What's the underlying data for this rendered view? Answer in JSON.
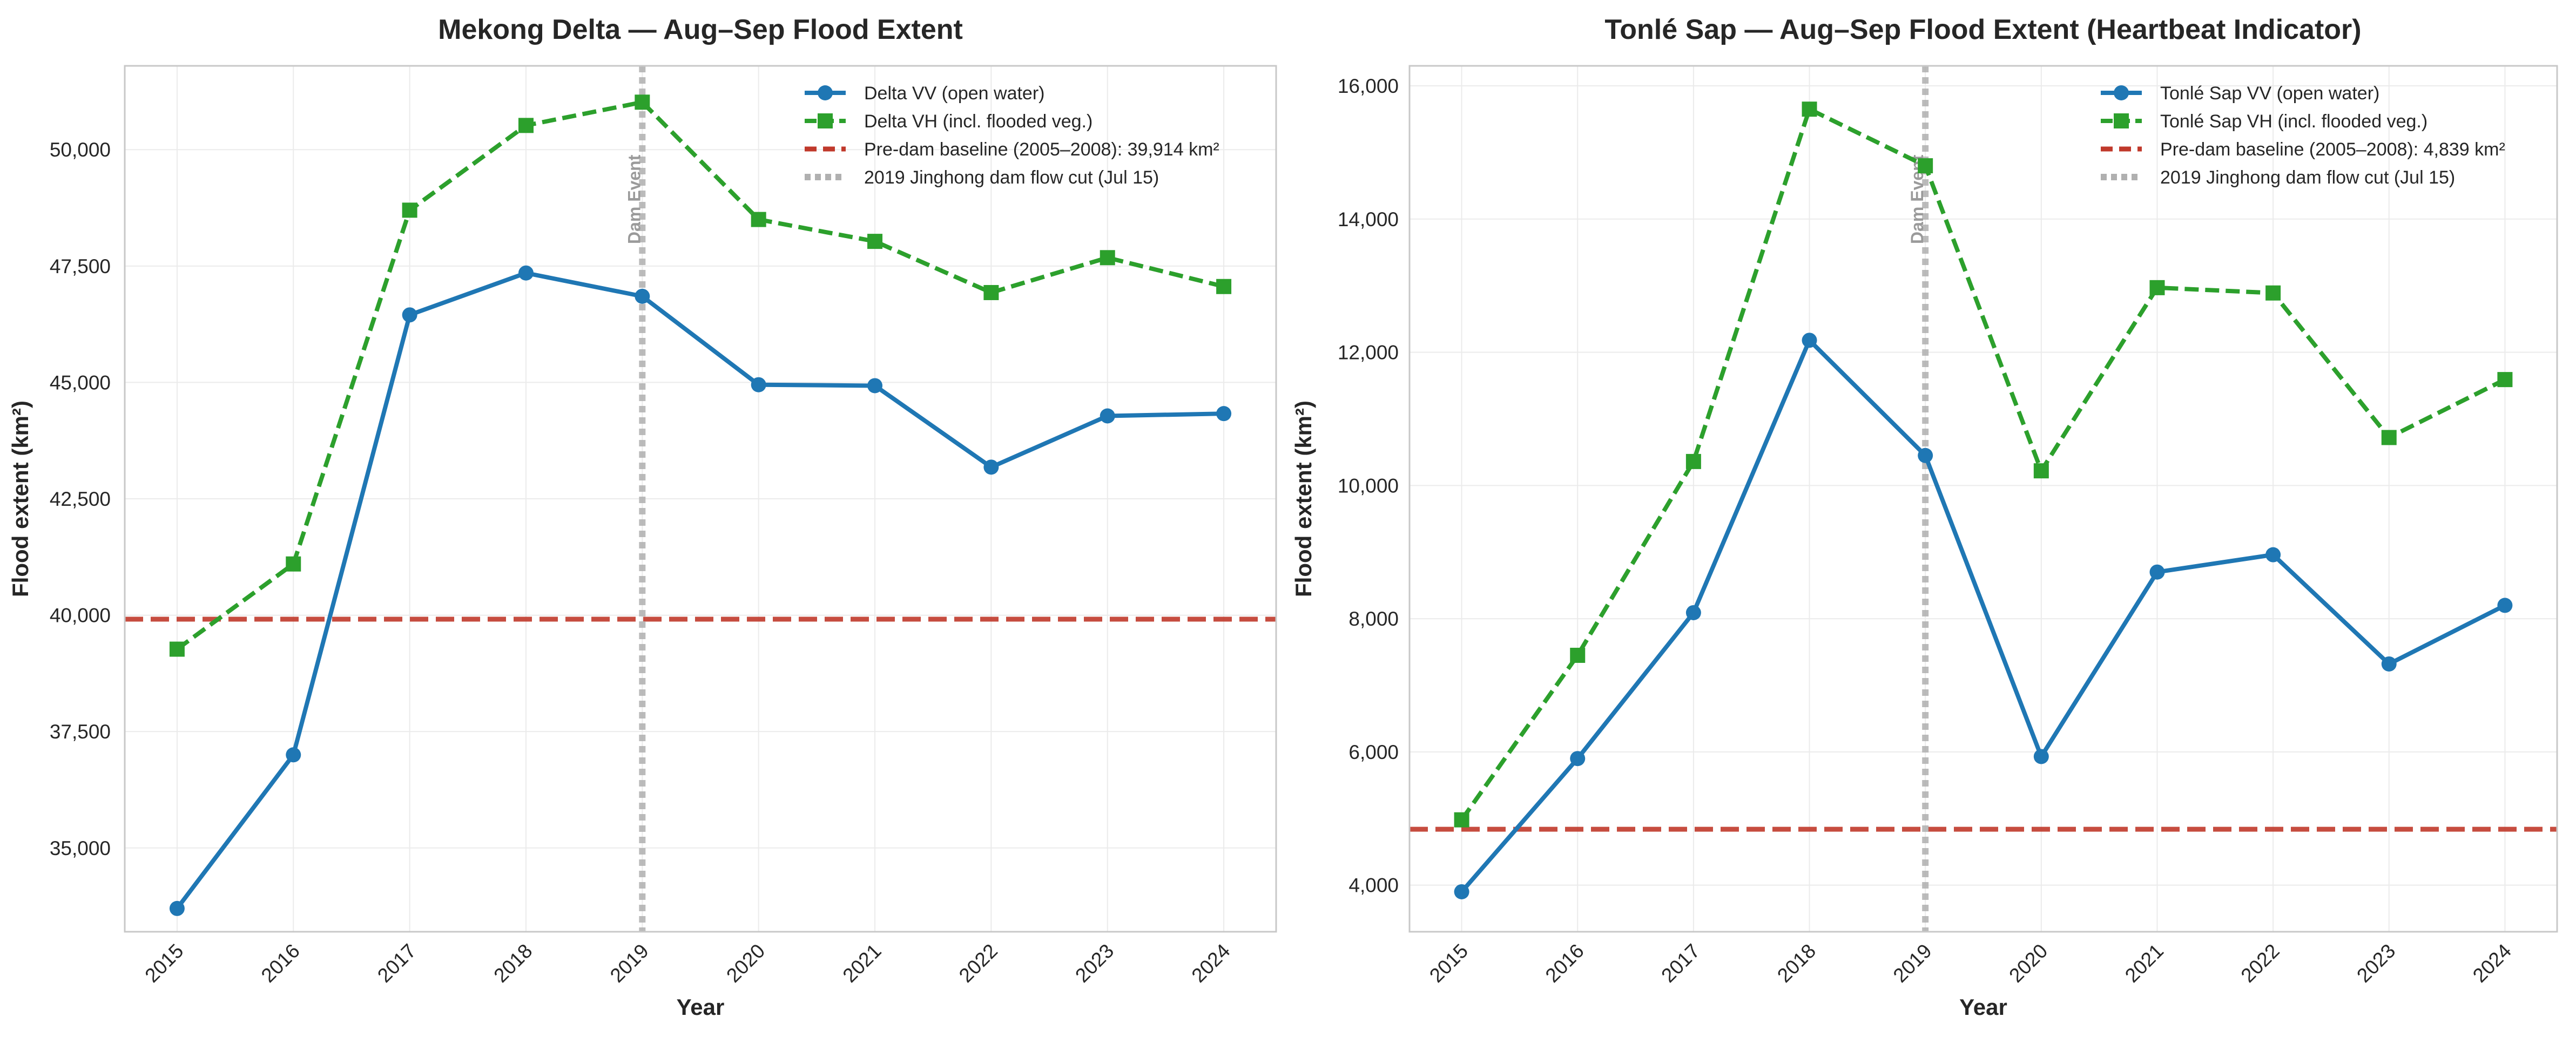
{
  "chart_data": [
    {
      "type": "line",
      "title": "Mekong Delta — Aug–Sep Flood Extent",
      "xlabel": "Year",
      "ylabel": "Flood extent (km²)",
      "x": [
        "2015",
        "2016",
        "2017",
        "2018",
        "2019",
        "2020",
        "2021",
        "2022",
        "2023",
        "2024"
      ],
      "xlim": [
        -0.45,
        9.45
      ],
      "ylim": [
        33200,
        51800
      ],
      "yticks": [
        35000,
        37500,
        40000,
        42500,
        45000,
        47500,
        50000
      ],
      "ytick_labels": [
        "35,000",
        "37,500",
        "40,000",
        "42,500",
        "45,000",
        "47,500",
        "50,000"
      ],
      "grid": true,
      "legend_position": "top-right",
      "series": [
        {
          "name": "Delta VV (open water)",
          "color": "#1f77b4",
          "marker": "circle",
          "style": "solid",
          "values": [
            33700,
            37000,
            46450,
            47350,
            46850,
            44950,
            44930,
            43180,
            44280,
            44330
          ]
        },
        {
          "name": "Delta VH (incl. flooded veg.)",
          "color": "#2ca02c",
          "marker": "square",
          "style": "dashed",
          "values": [
            39270,
            41100,
            48700,
            50520,
            51020,
            48500,
            48030,
            46930,
            47680,
            47060
          ]
        }
      ],
      "baseline": {
        "label": "Pre-dam baseline (2005–2008): 39,914 km²",
        "value": 39914,
        "color": "#c0392b"
      },
      "event": {
        "label": "2019 Jinghong dam flow cut (Jul 15)",
        "x": 4.0,
        "color": "#b0b0b0",
        "annotation": "Dam Event"
      }
    },
    {
      "type": "line",
      "title": "Tonlé Sap — Aug–Sep Flood Extent (Heartbeat Indicator)",
      "xlabel": "Year",
      "ylabel": "Flood extent (km²)",
      "x": [
        "2015",
        "2016",
        "2017",
        "2018",
        "2019",
        "2020",
        "2021",
        "2022",
        "2023",
        "2024"
      ],
      "xlim": [
        -0.45,
        9.45
      ],
      "ylim": [
        3300,
        16300
      ],
      "yticks": [
        4000,
        6000,
        8000,
        10000,
        12000,
        14000,
        16000
      ],
      "ytick_labels": [
        "4,000",
        "6,000",
        "8,000",
        "10,000",
        "12,000",
        "14,000",
        "16,000"
      ],
      "grid": true,
      "legend_position": "top-right",
      "series": [
        {
          "name": "Tonlé Sap VV (open water)",
          "color": "#1f77b4",
          "marker": "circle",
          "style": "solid",
          "values": [
            3900,
            5900,
            8090,
            12180,
            10450,
            5930,
            8700,
            8960,
            7320,
            8200
          ]
        },
        {
          "name": "Tonlé Sap VH (incl. flooded veg.)",
          "color": "#2ca02c",
          "marker": "square",
          "style": "dashed",
          "values": [
            4980,
            7450,
            10360,
            15650,
            14800,
            10220,
            12970,
            12890,
            10720,
            11590
          ]
        }
      ],
      "baseline": {
        "label": "Pre-dam baseline (2005–2008): 4,839 km²",
        "value": 4839,
        "color": "#c0392b"
      },
      "event": {
        "label": "2019 Jinghong dam flow cut (Jul 15)",
        "x": 4.0,
        "color": "#b0b0b0",
        "annotation": "Dam Event"
      }
    }
  ]
}
